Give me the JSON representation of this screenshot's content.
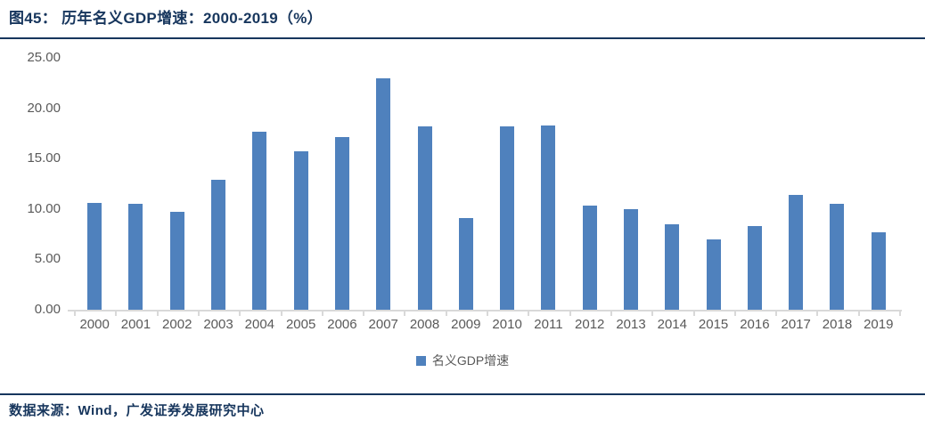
{
  "figure": {
    "title": "图45： 历年名义GDP增速：2000-2019（%）",
    "source": "数据来源：Wind，广发证券发展研究中心"
  },
  "legend": {
    "label": "名义GDP增速"
  },
  "colors": {
    "bar": "#4F81BD",
    "heading": "#17365D",
    "axis_line": "#D9D9D9",
    "axis_label": "#595959"
  },
  "chart_data": {
    "type": "bar",
    "title": "历年名义GDP增速：2000-2019（%）",
    "series_name": "名义GDP增速",
    "categories": [
      "2000",
      "2001",
      "2002",
      "2003",
      "2004",
      "2005",
      "2006",
      "2007",
      "2008",
      "2009",
      "2010",
      "2011",
      "2012",
      "2013",
      "2014",
      "2015",
      "2016",
      "2017",
      "2018",
      "2019"
    ],
    "values": [
      10.6,
      10.5,
      9.7,
      12.9,
      17.7,
      15.7,
      17.1,
      23.0,
      18.2,
      9.1,
      18.2,
      18.3,
      10.3,
      10.0,
      8.5,
      7.0,
      8.3,
      11.4,
      10.5,
      7.7
    ],
    "xlabel": "",
    "ylabel": "",
    "ylim": [
      0,
      25
    ],
    "ytick_labels": [
      "25.00",
      "20.00",
      "15.00",
      "10.00",
      "5.00",
      "0.00"
    ],
    "grid": false,
    "legend_position": "bottom"
  }
}
